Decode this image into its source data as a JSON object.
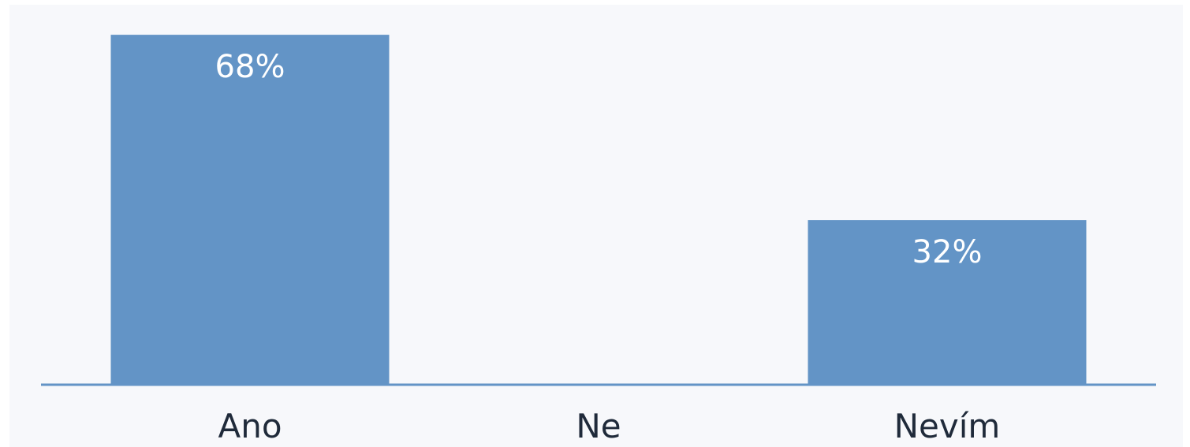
{
  "chart_data": {
    "type": "bar",
    "categories": [
      "Ano",
      "Ne",
      "Nevím"
    ],
    "values": [
      68,
      0,
      32
    ],
    "value_labels": [
      "68%",
      "",
      "32%"
    ],
    "ylim": [
      0,
      72
    ],
    "grid": false,
    "legend": "none"
  },
  "colors": {
    "background": "#ffffff",
    "plot_background": "#f7f8fb",
    "bar": "#6394c6",
    "baseline": "#6394c6",
    "value_label": "#ffffff",
    "category_label": "#1f2a3a"
  }
}
